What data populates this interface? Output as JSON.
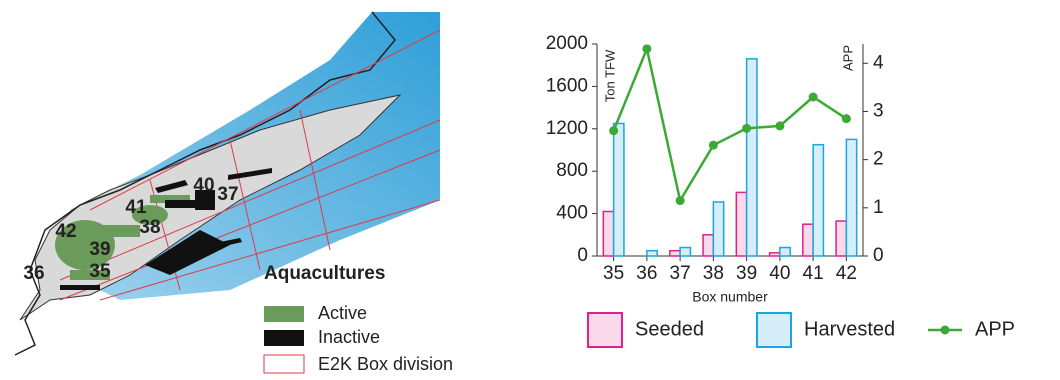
{
  "map": {
    "labels": [
      "36",
      "35",
      "39",
      "42",
      "41",
      "38",
      "40",
      "37"
    ],
    "legend": {
      "title": "Aquacultures",
      "items": [
        "Active",
        "Inactive",
        "E2K Box division"
      ]
    }
  },
  "chart_data": {
    "type": "bar",
    "categories": [
      "35",
      "36",
      "37",
      "38",
      "39",
      "40",
      "41",
      "42"
    ],
    "series": [
      {
        "name": "Seeded",
        "color": "#e0218a",
        "fill": "#fad9ea",
        "values": [
          420,
          0,
          50,
          200,
          600,
          30,
          300,
          330
        ]
      },
      {
        "name": "Harvested",
        "color": "#1aa6e0",
        "fill": "#d5eef9",
        "values": [
          1250,
          50,
          80,
          510,
          1860,
          80,
          1050,
          1100
        ]
      },
      {
        "name": "APP",
        "type": "line",
        "color": "#3aaa35",
        "axis": "y2",
        "values": [
          2.6,
          4.3,
          1.15,
          2.3,
          2.65,
          2.7,
          3.3,
          2.85
        ]
      }
    ],
    "ylim": [
      0,
      2000
    ],
    "yticks": [
      0,
      400,
      800,
      1200,
      1600,
      2000
    ],
    "y2lim": [
      0,
      4.4
    ],
    "y2ticks": [
      0,
      1,
      2,
      3,
      4
    ],
    "ylabel": "Ton TFW",
    "y2label": "APP",
    "xlabel": "Box number"
  }
}
